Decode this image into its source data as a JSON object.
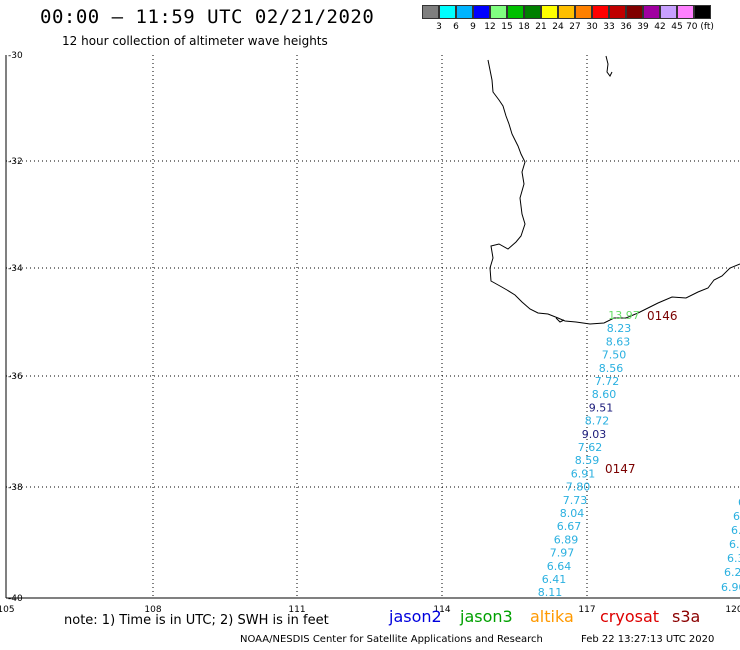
{
  "header": {
    "title": "00:00 – 11:59 UTC 02/21/2020",
    "subtitle": "12 hour collection of altimeter wave heights"
  },
  "scale": {
    "labels": [
      "3",
      "6",
      "9",
      "12",
      "15",
      "18",
      "21",
      "24",
      "27",
      "30",
      "33",
      "36",
      "39",
      "42",
      "45",
      "70 (ft)"
    ],
    "colors": [
      "#7f7f7f",
      "#00ffff",
      "#00b4ff",
      "#0000ff",
      "#80ff80",
      "#00c000",
      "#008000",
      "#ffff00",
      "#ffbf00",
      "#ff8000",
      "#ff0000",
      "#c00000",
      "#800000",
      "#a000a0",
      "#c8a0ff",
      "#ff80ff",
      "#000000"
    ]
  },
  "map": {
    "lat_labels": [
      "-30",
      "-32",
      "-34",
      "-36",
      "-38",
      "-40"
    ],
    "lon_labels": [
      "105",
      "108",
      "111",
      "114",
      "117",
      "120"
    ]
  },
  "passes": [
    {
      "label": "0146",
      "color": "#7a0000"
    },
    {
      "label": "0147",
      "color": "#7a0000"
    }
  ],
  "readings": [
    {
      "v": "13.97",
      "c": "#66dd66"
    },
    {
      "v": "8.23",
      "c": "#2ab0e0"
    },
    {
      "v": "8.63",
      "c": "#2ab0e0"
    },
    {
      "v": "7.50",
      "c": "#2ab0e0"
    },
    {
      "v": "8.56",
      "c": "#2ab0e0"
    },
    {
      "v": "7.72",
      "c": "#2ab0e0"
    },
    {
      "v": "8.60",
      "c": "#2ab0e0"
    },
    {
      "v": "9.51",
      "c": "#1a1a7a"
    },
    {
      "v": "8.72",
      "c": "#2ab0e0"
    },
    {
      "v": "9.03",
      "c": "#1a1a7a"
    },
    {
      "v": "7.62",
      "c": "#2ab0e0"
    },
    {
      "v": "8.59",
      "c": "#2ab0e0"
    },
    {
      "v": "6.91",
      "c": "#2ab0e0"
    },
    {
      "v": "7.80",
      "c": "#2ab0e0"
    },
    {
      "v": "7.73",
      "c": "#2ab0e0"
    },
    {
      "v": "8.04",
      "c": "#2ab0e0"
    },
    {
      "v": "6.67",
      "c": "#2ab0e0"
    },
    {
      "v": "6.89",
      "c": "#2ab0e0"
    },
    {
      "v": "7.97",
      "c": "#2ab0e0"
    },
    {
      "v": "6.64",
      "c": "#2ab0e0"
    },
    {
      "v": "6.41",
      "c": "#2ab0e0"
    },
    {
      "v": "8.11",
      "c": "#2ab0e0"
    }
  ],
  "edge_readings": [
    {
      "v": "6",
      "c": "#2ab0e0"
    },
    {
      "v": "6",
      "c": "#2ab0e0"
    },
    {
      "v": "6.",
      "c": "#2ab0e0"
    },
    {
      "v": "6.0",
      "c": "#2ab0e0"
    },
    {
      "v": "6.3",
      "c": "#2ab0e0"
    },
    {
      "v": "6.27",
      "c": "#2ab0e0"
    },
    {
      "v": "6.90",
      "c": "#2ab0e0"
    }
  ],
  "footer": {
    "note": "note: 1) Time is in UTC; 2) SWH is in feet",
    "legend": [
      {
        "label": "jason2",
        "color": "#0000dd"
      },
      {
        "label": "jason3",
        "color": "#00a000"
      },
      {
        "label": "altika",
        "color": "#ff9900"
      },
      {
        "label": "cryosat",
        "color": "#dd0000"
      },
      {
        "label": "s3a",
        "color": "#8b0000"
      }
    ],
    "credit": "NOAA/NESDIS Center for Satellite Applications and Research",
    "timestamp": "Feb 22 13:27:13 UTC 2020"
  }
}
